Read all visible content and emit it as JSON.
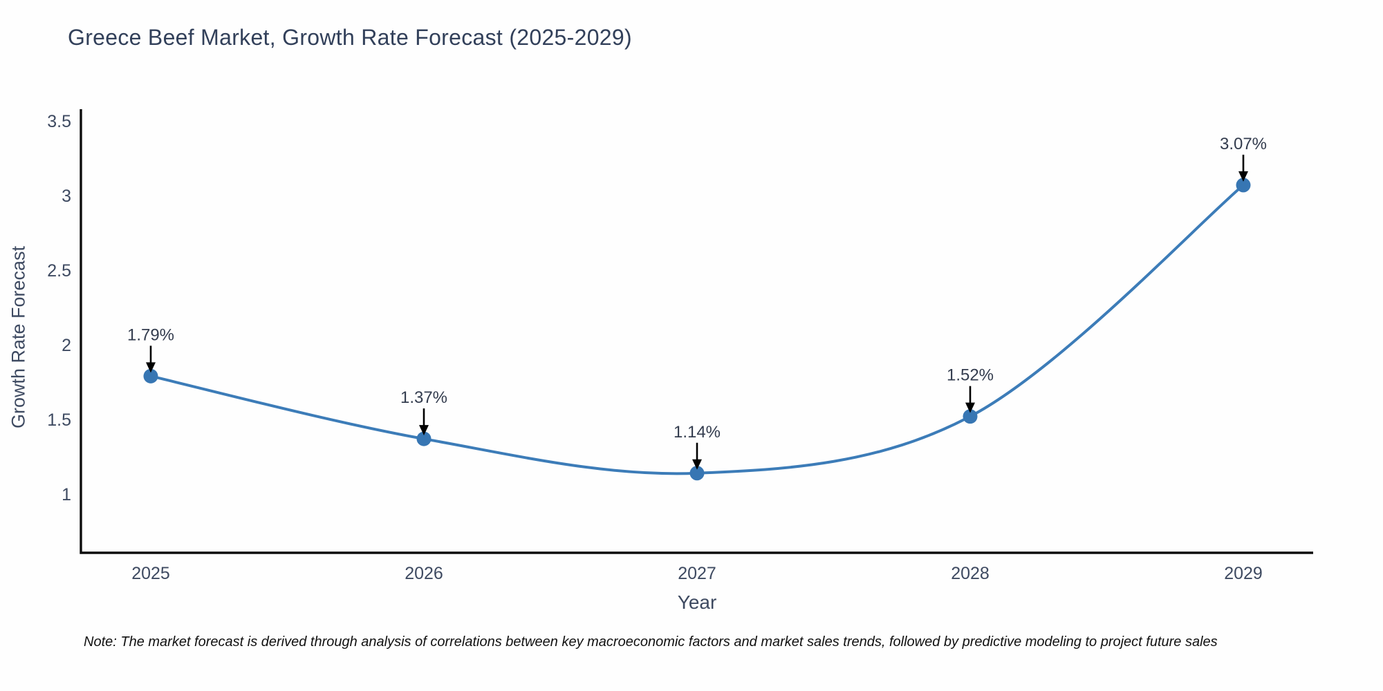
{
  "chart_data": {
    "type": "line",
    "title": "Greece Beef Market, Growth Rate Forecast (2025-2029)",
    "xlabel": "Year",
    "ylabel": "Growth Rate Forecast",
    "x": [
      2025,
      2026,
      2027,
      2028,
      2029
    ],
    "series": [
      {
        "name": "Growth Rate Forecast",
        "values": [
          1.79,
          1.37,
          1.14,
          1.52,
          3.07
        ],
        "point_labels": [
          "1.79%",
          "1.37%",
          "1.14%",
          "1.52%",
          "3.07%"
        ]
      }
    ],
    "yticks": [
      1,
      1.5,
      2,
      2.5,
      3,
      3.5
    ],
    "ylim": [
      0.6,
      3.58
    ],
    "line_shape": "spline",
    "grid": false,
    "legend_position": "none",
    "annotations_style": "label-above-with-down-arrow",
    "colors": {
      "line": "#3c7cb8",
      "marker": "#3776b3",
      "axis": "#0d0d0d",
      "tick_text": "#3e4a61",
      "annotation_text": "#333c4e",
      "arrow": "#000000"
    },
    "note": "Note: The market forecast is derived through analysis of correlations between key macroeconomic factors and market sales trends, followed by predictive modeling to project future sales"
  }
}
